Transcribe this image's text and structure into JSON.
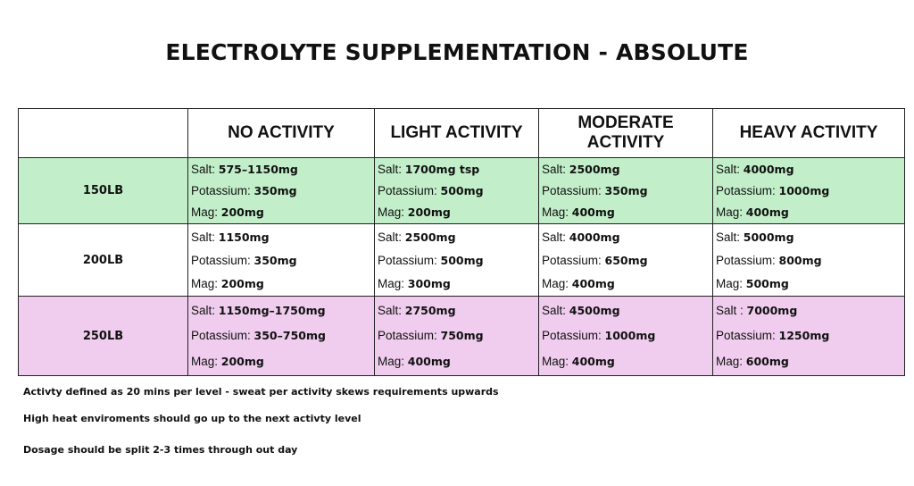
{
  "title": "ELECTROLYTE SUPPLEMENTATION  - ABSOLUTE",
  "columns": [
    "",
    "NO ACTIVITY",
    "LIGHT ACTIVITY",
    "MODERATE ACTIVITY",
    "HEAVY ACTIVITY"
  ],
  "rows": [
    {
      "label": "150LB",
      "color": "#c2efc9",
      "cells": [
        [
          [
            "Salt: ",
            "575–1150mg"
          ],
          [
            "Potassium: ",
            "350mg"
          ],
          [
            "Mag: ",
            "200mg"
          ]
        ],
        [
          [
            "Salt: ",
            "1700mg tsp"
          ],
          [
            "Potassium: ",
            "500mg"
          ],
          [
            "Mag: ",
            "200mg"
          ]
        ],
        [
          [
            "Salt: ",
            "2500mg"
          ],
          [
            "Potassium: ",
            "350mg"
          ],
          [
            "Mag: ",
            "400mg"
          ]
        ],
        [
          [
            "Salt: ",
            "4000mg"
          ],
          [
            "Potassium: ",
            "1000mg"
          ],
          [
            "Mag: ",
            "400mg"
          ]
        ]
      ]
    },
    {
      "label": "200LB",
      "color": "#ffffff",
      "cells": [
        [
          [
            "Salt: ",
            "1150mg"
          ],
          [
            "Potassium: ",
            "350mg"
          ],
          [
            "Mag: ",
            "200mg"
          ]
        ],
        [
          [
            "Salt: ",
            "2500mg"
          ],
          [
            "Potassium: ",
            "500mg"
          ],
          [
            "Mag: ",
            "300mg"
          ]
        ],
        [
          [
            "Salt: ",
            "4000mg"
          ],
          [
            "Potassium: ",
            "650mg"
          ],
          [
            "Mag: ",
            "400mg"
          ]
        ],
        [
          [
            "Salt: ",
            "5000mg"
          ],
          [
            "Potassium: ",
            "800mg"
          ],
          [
            "Mag: ",
            "500mg"
          ]
        ]
      ]
    },
    {
      "label": "250LB",
      "color": "#f0cdee",
      "cells": [
        [
          [
            "Salt: ",
            "1150mg–1750mg"
          ],
          [
            "Potassium: ",
            "350–750mg"
          ],
          [
            "Mag: ",
            "200mg"
          ]
        ],
        [
          [
            "Salt: ",
            "2750mg"
          ],
          [
            "Potassium: ",
            "750mg"
          ],
          [
            "Mag: ",
            "400mg"
          ]
        ],
        [
          [
            "Salt: ",
            "4500mg"
          ],
          [
            "Potassium: ",
            "1000mg"
          ],
          [
            "Mag: ",
            "400mg"
          ]
        ],
        [
          [
            "Salt : ",
            "7000mg"
          ],
          [
            "Potassium: ",
            "1250mg"
          ],
          [
            "Mag: ",
            "600mg"
          ]
        ]
      ]
    }
  ],
  "notes": [
    "Activty defined as 20 mins per level - sweat per activity skews requirements upwards",
    "High heat enviroments should go up to the next activty level",
    "Dosage should be split 2-3 times through out day"
  ]
}
